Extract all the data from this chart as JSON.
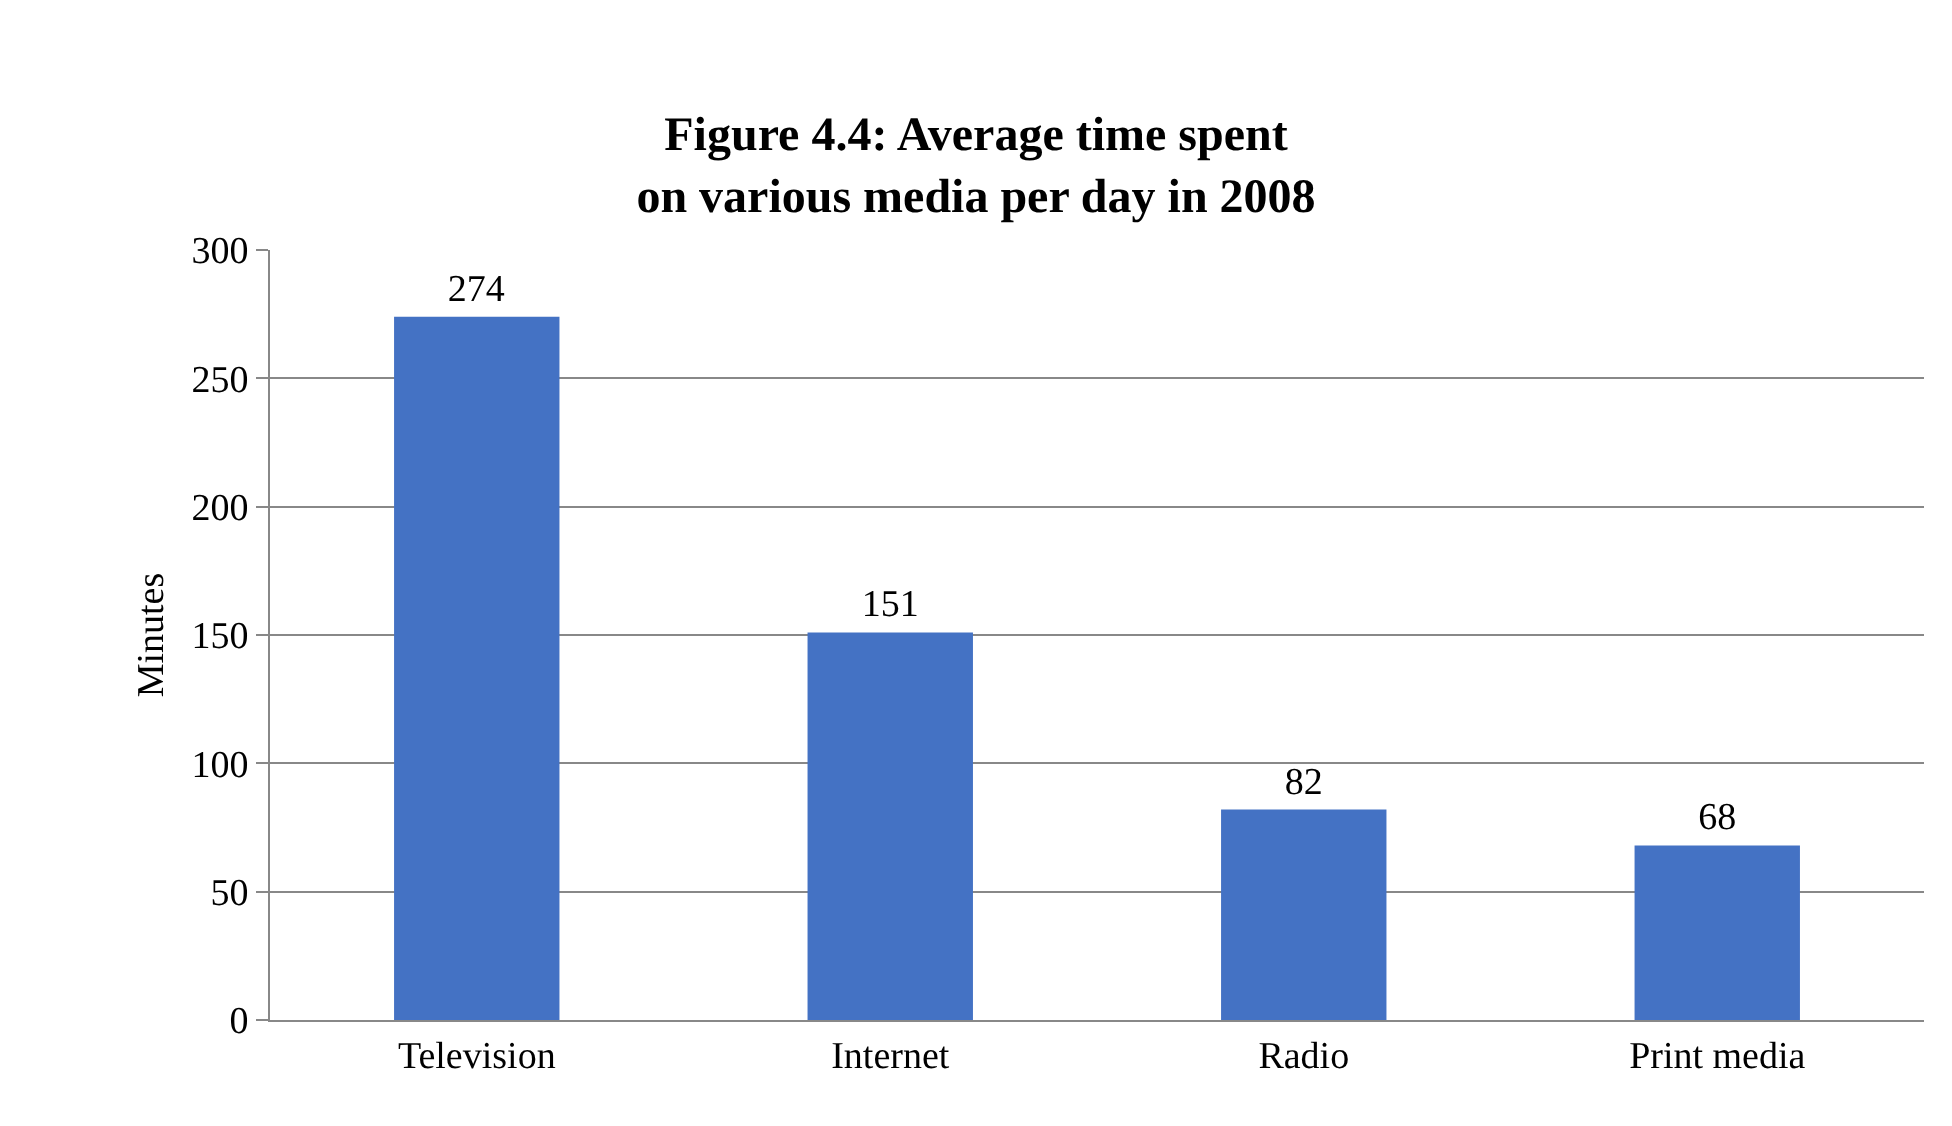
{
  "chart_data": {
    "type": "bar",
    "title": "Figure 4.4: Average time spent\non various media per day in 2008",
    "ylabel": "Minutes",
    "categories": [
      "Television",
      "Internet",
      "Radio",
      "Print media"
    ],
    "values": [
      274,
      151,
      82,
      68
    ],
    "color": "#4472c4",
    "ylim": [
      0,
      300
    ],
    "yticks": [
      0,
      50,
      100,
      150,
      200,
      250,
      300
    ],
    "grid": "y",
    "data_labels": true,
    "legend": false
  }
}
